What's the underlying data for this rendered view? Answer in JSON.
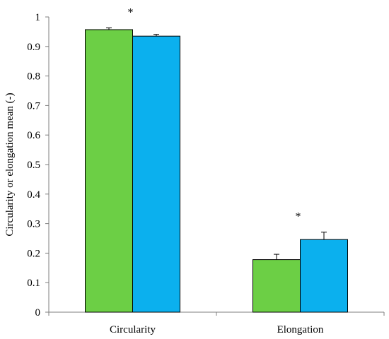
{
  "chart_data": {
    "type": "bar",
    "title": "",
    "xlabel": "",
    "ylabel": "Circularity or elongation mean (-)",
    "categories": [
      "Circularity",
      "Elongation"
    ],
    "series": [
      {
        "color": "#6ccf45",
        "values": [
          0.957,
          0.178
        ],
        "errors": [
          0.006,
          0.018
        ]
      },
      {
        "color": "#0bb0ee",
        "values": [
          0.935,
          0.246
        ],
        "errors": [
          0.006,
          0.025
        ]
      }
    ],
    "ylim": [
      0,
      1
    ],
    "yticks": [
      "0",
      "0.1",
      "0.2",
      "0.3",
      "0.4",
      "0.5",
      "0.6",
      "0.7",
      "0.8",
      "0.9",
      "1"
    ],
    "annotations": [
      "*",
      "*"
    ],
    "grid": false,
    "legend": "none"
  }
}
